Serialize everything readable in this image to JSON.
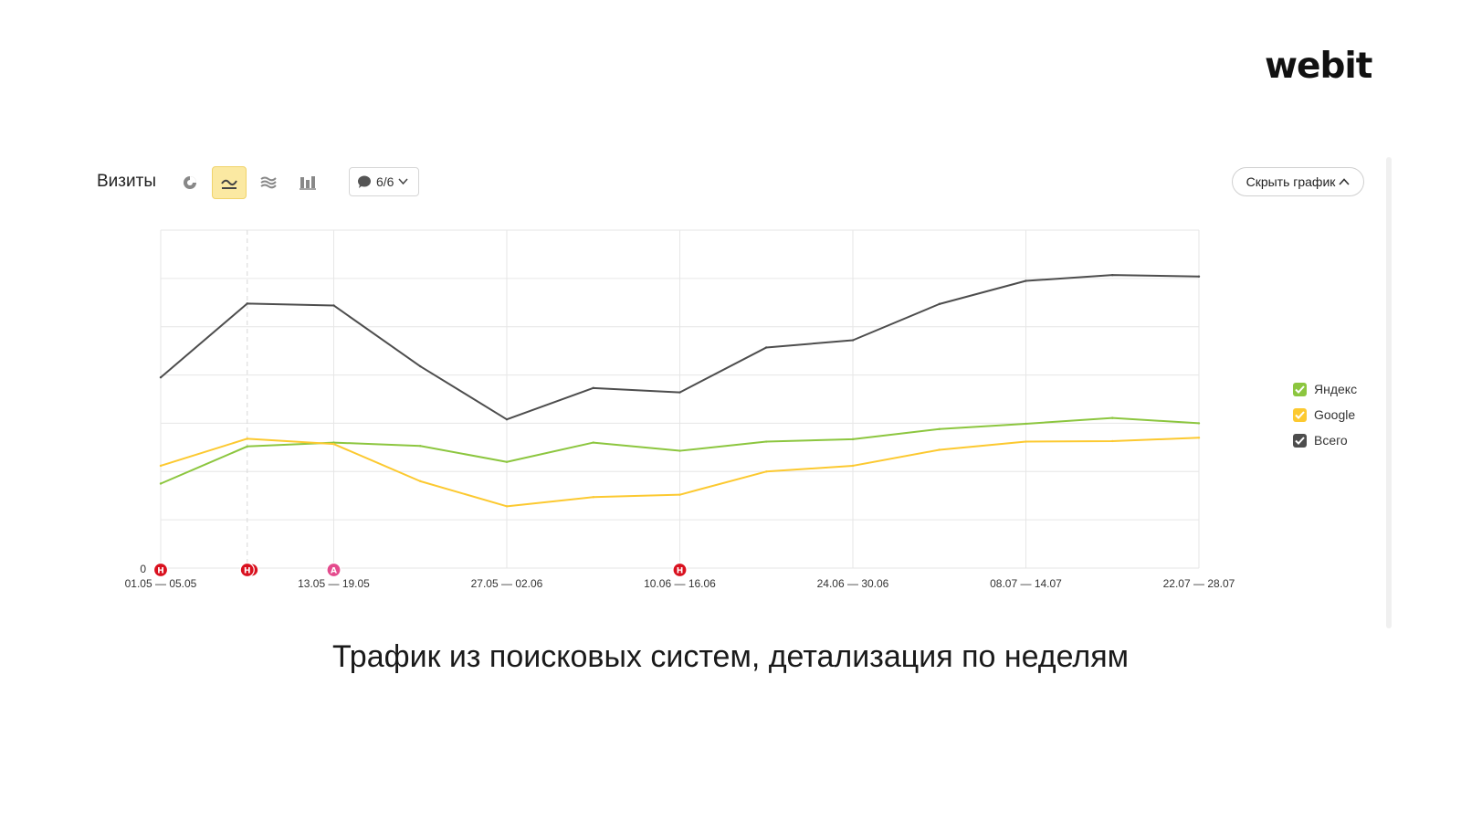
{
  "brand": {
    "logo_text": "webit"
  },
  "toolbar": {
    "metric_title": "Визиты",
    "notes_count": "6/6",
    "hide_chart_label": "Скрыть график",
    "accent_color": "#fbe9a2"
  },
  "caption": "Трафик из поисковых систем, детализация по неделям",
  "chart_data": {
    "type": "line",
    "title": "",
    "xlabel": "",
    "ylabel": "",
    "ylim": [
      0,
      700
    ],
    "grid": true,
    "legend_position": "right",
    "y_tick_labels": [
      "0"
    ],
    "x_tick_labels": [
      "01.05 — 05.05",
      "13.05 — 19.05",
      "27.05 — 02.06",
      "10.06 — 16.06",
      "24.06 — 30.06",
      "08.07 — 14.07",
      "22.07 — 28.07"
    ],
    "x": [
      "01.05 — 05.05",
      "06.05 — 12.05",
      "13.05 — 19.05",
      "20.05 — 26.05",
      "27.05 — 02.06",
      "03.06 — 09.06",
      "10.06 — 16.06",
      "17.06 — 23.06",
      "24.06 — 30.06",
      "01.07 — 07.07",
      "08.07 — 14.07",
      "15.07 — 21.07",
      "22.07 — 28.07"
    ],
    "series": [
      {
        "name": "Всего",
        "color": "#4d4d4d",
        "values": [
          395,
          548,
          544,
          418,
          308,
          373,
          364,
          457,
          472,
          547,
          595,
          607,
          604
        ]
      },
      {
        "name": "Яндекс",
        "color": "#8cc63f",
        "values": [
          175,
          252,
          260,
          253,
          220,
          260,
          243,
          262,
          267,
          288,
          299,
          311,
          300
        ]
      },
      {
        "name": "Google",
        "color": "#fcc930",
        "values": [
          212,
          268,
          257,
          180,
          128,
          147,
          152,
          200,
          212,
          245,
          262,
          263,
          270
        ]
      }
    ],
    "annotations": [
      {
        "x": "01.05 — 05.05",
        "label": "Н",
        "color": "#d9111f"
      },
      {
        "x": "06.05 — 12.05",
        "label": "Н",
        "color": "#d9111f"
      },
      {
        "x": "13.05 — 19.05",
        "label": "А",
        "color": "#e44b8d"
      },
      {
        "x": "10.06 — 16.06",
        "label": "Н",
        "color": "#d9111f"
      }
    ]
  }
}
